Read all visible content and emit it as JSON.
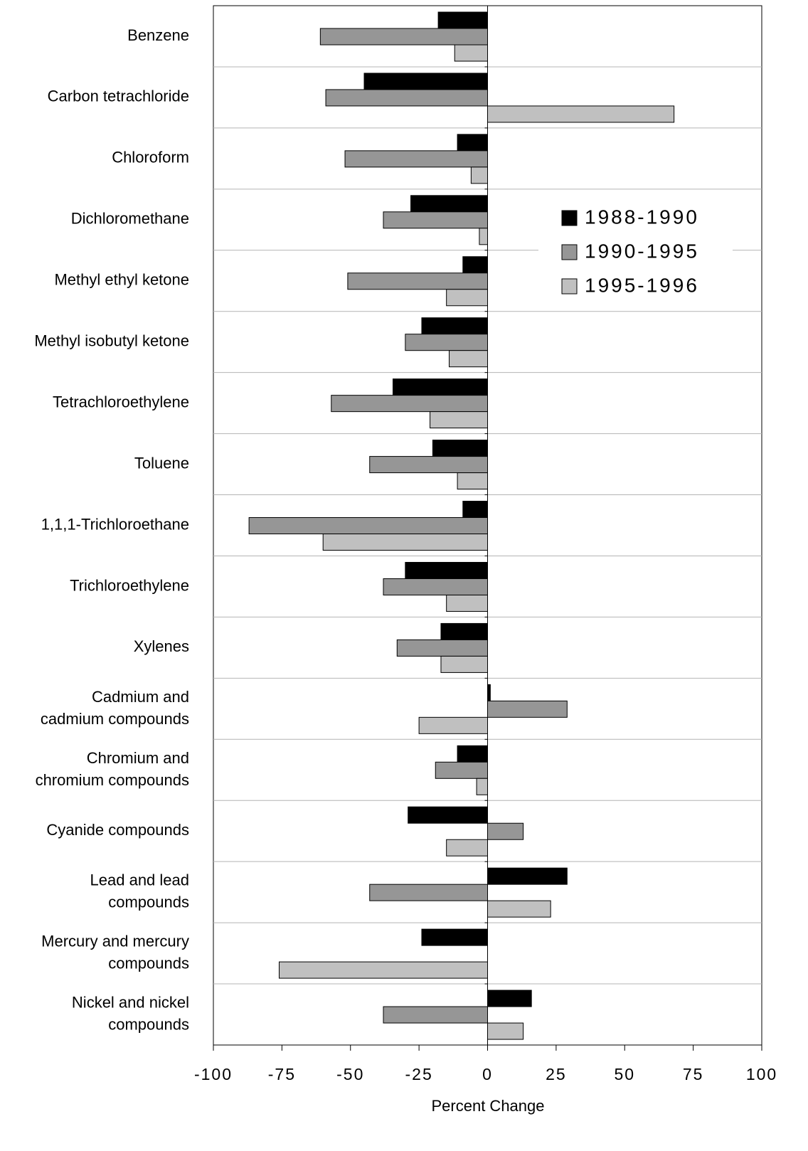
{
  "chart_data": {
    "type": "bar",
    "orientation": "horizontal",
    "xlabel": "Percent Change",
    "categories": [
      "Benzene",
      "Carbon tetrachloride",
      "Chloroform",
      "Dichloromethane",
      "Methyl ethyl ketone",
      "Methyl isobutyl ketone",
      "Tetrachloroethylene",
      "Toluene",
      "1,1,1-Trichloroethane",
      "Trichloroethylene",
      "Xylenes",
      "Cadmium and\ncadmium compounds",
      "Chromium and\nchromium compounds",
      "Cyanide compounds",
      "Lead and lead\ncompounds",
      "Mercury and mercury\ncompounds",
      "Nickel and nickel\ncompounds"
    ],
    "series": [
      {
        "name": "1988-1990",
        "color": "#000000",
        "values": [
          -18,
          -45,
          -11,
          -28,
          -9,
          -24,
          -34.5,
          -20,
          -9,
          -30,
          -17,
          1,
          -11,
          -29,
          29,
          -24,
          16
        ]
      },
      {
        "name": "1990-1995",
        "color": "#969696",
        "values": [
          -61,
          -59,
          -52,
          -38,
          -51,
          -30,
          -57,
          -43,
          -87,
          -38,
          -33,
          29,
          -19,
          13,
          -43,
          null,
          -38
        ]
      },
      {
        "name": "1995-1996",
        "color": "#c0c0c0",
        "values": [
          -12,
          68,
          -6,
          -3,
          -15,
          -14,
          -21,
          -11,
          -60,
          -15,
          -17,
          -25,
          -4,
          -15,
          23,
          -76,
          13
        ]
      }
    ],
    "xlim": [
      -100,
      100
    ],
    "xticks": [
      -100,
      -75,
      -50,
      -25,
      0,
      25,
      50,
      75,
      100
    ],
    "category_separators": true,
    "legend_position": "right"
  }
}
